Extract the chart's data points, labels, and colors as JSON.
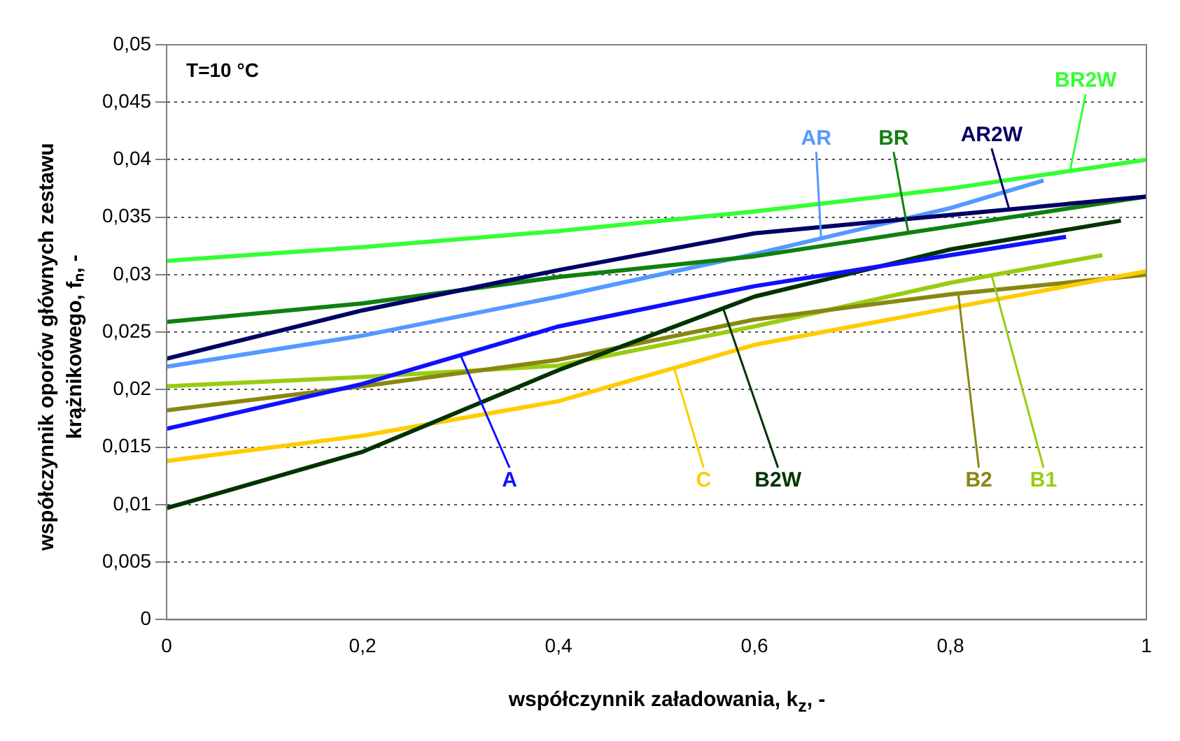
{
  "chart_data": {
    "type": "line",
    "xlabel": "współczynnik załadowania, k$_{z}$, -",
    "ylabel": "współczynnik oporów głównych zestawu krążnikowego, fₙ, -",
    "annotations": [
      "T=10 °C"
    ],
    "xlim": [
      0,
      1
    ],
    "ylim": [
      0,
      0.05
    ],
    "xticks": [
      0,
      {
        "value": 0.2,
        "label": "0,2"
      },
      {
        "value": 0.4,
        "label": "0,4"
      },
      {
        "value": 0.6,
        "label": "0,6"
      },
      {
        "value": 0.8,
        "label": "0,8"
      },
      1
    ],
    "yticks": [
      0,
      {
        "value": 0.005,
        "label": "0,005"
      },
      {
        "value": 0.01,
        "label": "0,01"
      },
      {
        "value": 0.015,
        "label": "0,015"
      },
      {
        "value": 0.02,
        "label": "0,02"
      },
      {
        "value": 0.025,
        "label": "0,025"
      },
      {
        "value": 0.03,
        "label": "0,03"
      },
      {
        "value": 0.035,
        "label": "0,035"
      },
      {
        "value": 0.04,
        "label": "0,04"
      },
      {
        "value": 0.045,
        "label": "0,045"
      },
      {
        "value": 0.05,
        "label": "0,05"
      }
    ],
    "grid": "y",
    "legend": false,
    "marker": "none",
    "line_style": "solid",
    "series": [
      {
        "name": "BR2W",
        "color": "#33ff33",
        "x": [
          0,
          0.2,
          0.4,
          0.6,
          0.8,
          1
        ],
        "values": [
          0.0312,
          0.0324,
          0.0338,
          0.0355,
          0.0375,
          0.04
        ]
      },
      {
        "name": "AR2W",
        "color": "#000066",
        "x": [
          0,
          0.2,
          0.4,
          0.6,
          0.8,
          1
        ],
        "values": [
          0.0227,
          0.0269,
          0.0304,
          0.0336,
          0.0352,
          0.0368
        ]
      },
      {
        "name": "BR",
        "color": "#108010",
        "x": [
          0,
          0.2,
          0.4,
          0.6,
          0.8,
          1
        ],
        "values": [
          0.0259,
          0.0275,
          0.0298,
          0.0316,
          0.0342,
          0.0368
        ]
      },
      {
        "name": "AR",
        "color": "#5599ff",
        "x": [
          0,
          0.2,
          0.4,
          0.6,
          0.8,
          0.895
        ],
        "values": [
          0.022,
          0.0247,
          0.0281,
          0.0318,
          0.0358,
          0.0382
        ]
      },
      {
        "name": "A",
        "color": "#1010ff",
        "x": [
          0,
          0.2,
          0.4,
          0.6,
          0.8,
          0.918
        ],
        "values": [
          0.0166,
          0.0205,
          0.0255,
          0.029,
          0.0317,
          0.0333
        ]
      },
      {
        "name": "B2W",
        "color": "#003300",
        "x": [
          0,
          0.2,
          0.4,
          0.6,
          0.8,
          0.974
        ],
        "values": [
          0.0097,
          0.0146,
          0.0217,
          0.0281,
          0.0322,
          0.0347
        ]
      },
      {
        "name": "C",
        "color": "#ffcc00",
        "x": [
          0,
          0.2,
          0.4,
          0.6,
          0.8,
          1
        ],
        "values": [
          0.0138,
          0.016,
          0.019,
          0.0239,
          0.0271,
          0.0303
        ]
      },
      {
        "name": "B2",
        "color": "#888811",
        "x": [
          0,
          0.2,
          0.4,
          0.6,
          0.8,
          1
        ],
        "values": [
          0.0182,
          0.0203,
          0.0226,
          0.0261,
          0.0283,
          0.03
        ]
      },
      {
        "name": "B1",
        "color": "#99cc11",
        "x": [
          0,
          0.2,
          0.4,
          0.6,
          0.8,
          0.955
        ],
        "values": [
          0.0203,
          0.0211,
          0.0221,
          0.0255,
          0.0293,
          0.0317
        ]
      }
    ]
  }
}
